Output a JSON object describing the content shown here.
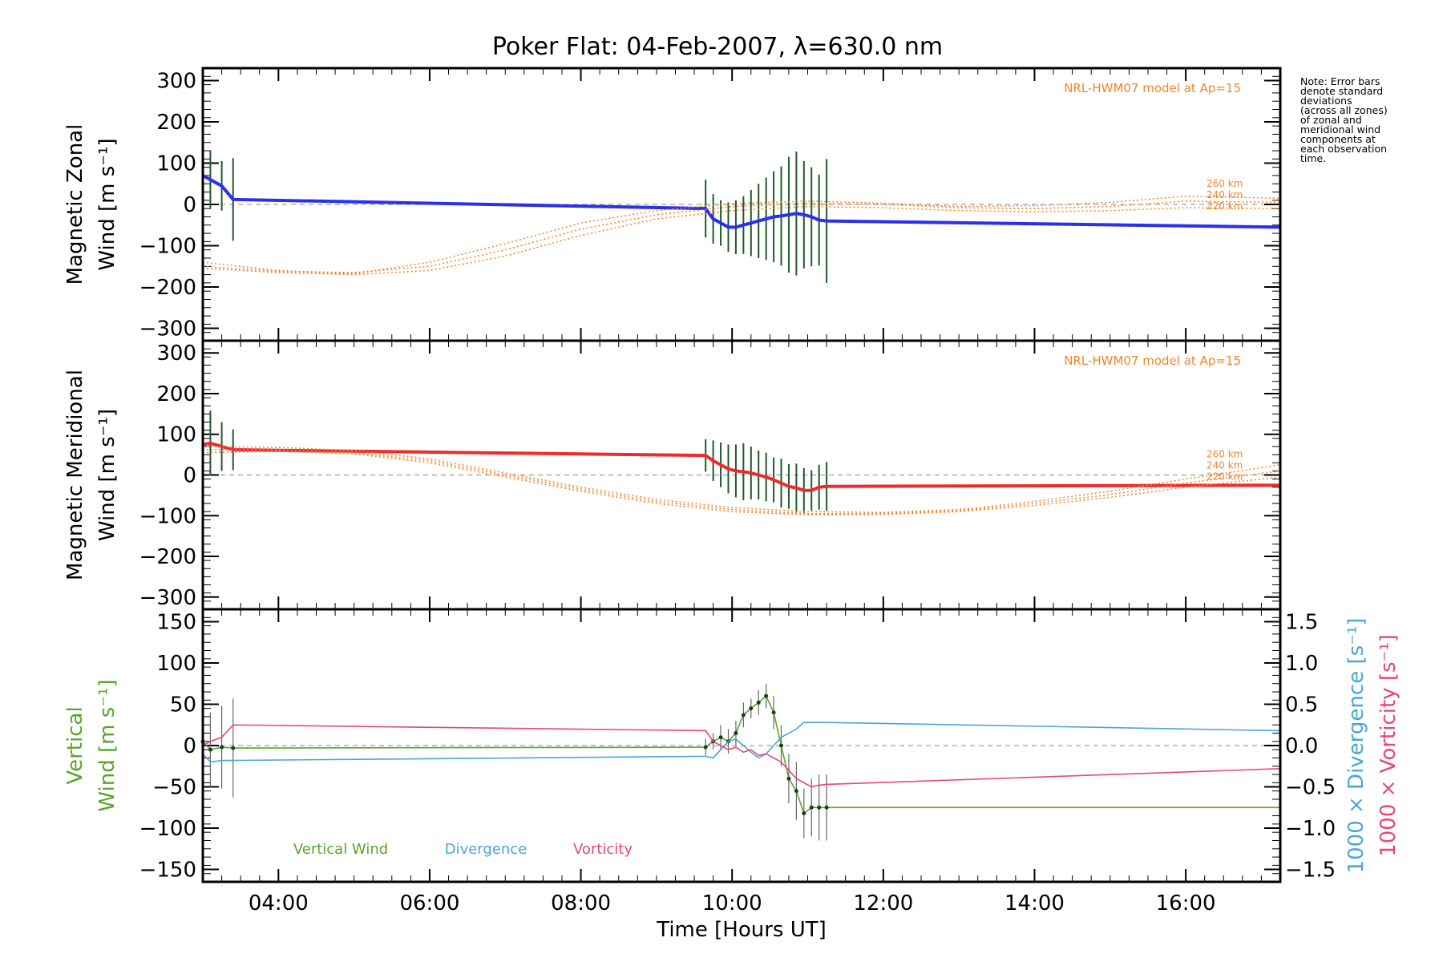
{
  "title": "Poker Flat: 04-Feb-2007, λ=630.0 nm",
  "note_lines": [
    "Note: Error bars",
    "denote standard",
    "deviations",
    "(across all zones)",
    "of zonal and",
    "meridional wind",
    "components at",
    "each observation",
    "time."
  ],
  "colors": {
    "zonal": "#2a2ff0",
    "meridional": "#ee2a2a",
    "model": "#f0862a",
    "vertical": "#5aa52a",
    "divergence": "#4aa6d8",
    "vorticity": "#e8467a",
    "grid_zero": "#888888"
  },
  "xaxis": {
    "label_prefix": "Time ",
    "label_inner": "Hours UT",
    "ticks": [
      "04:00",
      "06:00",
      "08:00",
      "10:00",
      "12:00",
      "14:00",
      "16:00"
    ]
  },
  "chart_data": [
    {
      "type": "line",
      "name": "zonal",
      "ylabel_top": "Magnetic Zonal",
      "ylabel_bottom": "Wind [m s⁻¹]",
      "ylim": [
        -330,
        330
      ],
      "yticks": [
        "300",
        "200",
        "100",
        "0",
        "−100",
        "−200",
        "−300"
      ],
      "model_label": "NRL-HWM07 model at Ap=15",
      "model_alt_labels": [
        "260 km",
        "240 km",
        "220 km"
      ],
      "xlim": [
        3.0,
        17.25
      ],
      "series": [
        {
          "name": "Zonal wind",
          "color": "#2a2ff0",
          "x": [
            3.0,
            3.1,
            3.25,
            3.4,
            9.65,
            9.75,
            9.85,
            9.95,
            10.05,
            10.15,
            10.25,
            10.35,
            10.45,
            10.55,
            10.65,
            10.75,
            10.85,
            10.95,
            11.05,
            11.15,
            11.25,
            17.25
          ],
          "y": [
            70,
            60,
            45,
            12,
            -10,
            -35,
            -45,
            -55,
            -55,
            -50,
            -45,
            -40,
            -35,
            -30,
            -28,
            -25,
            -22,
            -25,
            -30,
            -38,
            -40,
            -55
          ]
        },
        {
          "name": "NRL-HWM07 260 km",
          "color": "#f0862a",
          "style": "dotted",
          "x": [
            3.0,
            4.0,
            5.0,
            6.0,
            7.0,
            8.0,
            9.0,
            10.0,
            11.0,
            12.0,
            13.0,
            14.0,
            15.0,
            16.0,
            17.25
          ],
          "y": [
            -140,
            -160,
            -168,
            -140,
            -95,
            -45,
            -15,
            2,
            8,
            3,
            -5,
            -3,
            5,
            20,
            15
          ]
        },
        {
          "name": "NRL-HWM07 240 km",
          "color": "#f0862a",
          "style": "dotted",
          "x": [
            3.0,
            4.0,
            5.0,
            6.0,
            7.0,
            8.0,
            9.0,
            10.0,
            11.0,
            12.0,
            13.0,
            14.0,
            15.0,
            16.0,
            17.25
          ],
          "y": [
            -150,
            -162,
            -165,
            -150,
            -110,
            -60,
            -25,
            -5,
            3,
            0,
            -8,
            -10,
            -5,
            8,
            5
          ]
        },
        {
          "name": "NRL-HWM07 220 km",
          "color": "#f0862a",
          "style": "dotted",
          "x": [
            3.0,
            4.0,
            5.0,
            6.0,
            7.0,
            8.0,
            9.0,
            10.0,
            11.0,
            12.0,
            13.0,
            14.0,
            15.0,
            16.0,
            17.25
          ],
          "y": [
            -155,
            -165,
            -170,
            -160,
            -125,
            -75,
            -35,
            -15,
            -5,
            -8,
            -15,
            -18,
            -15,
            -8,
            -10
          ]
        }
      ],
      "error_bars": {
        "x": [
          3.0,
          3.1,
          3.25,
          3.4,
          9.65,
          9.75,
          9.85,
          9.95,
          10.05,
          10.15,
          10.25,
          10.35,
          10.45,
          10.55,
          10.65,
          10.75,
          10.85,
          10.95,
          11.05,
          11.15,
          11.25
        ],
        "y": [
          70,
          60,
          45,
          12,
          -10,
          -35,
          -45,
          -55,
          -55,
          -50,
          -45,
          -40,
          -35,
          -30,
          -28,
          -25,
          -22,
          -25,
          -30,
          -38,
          -40
        ],
        "err": [
          80,
          70,
          60,
          100,
          70,
          60,
          55,
          60,
          65,
          70,
          80,
          90,
          100,
          110,
          120,
          140,
          150,
          130,
          120,
          110,
          150
        ]
      }
    },
    {
      "type": "line",
      "name": "meridional",
      "ylabel_top": "Magnetic Meridional",
      "ylabel_bottom": "Wind [m s⁻¹]",
      "ylim": [
        -330,
        330
      ],
      "yticks": [
        "300",
        "200",
        "100",
        "0",
        "−100",
        "−200",
        "−300"
      ],
      "model_label": "NRL-HWM07 model at Ap=15",
      "model_alt_labels": [
        "260 km",
        "240 km",
        "220 km"
      ],
      "xlim": [
        3.0,
        17.25
      ],
      "series": [
        {
          "name": "Meridional wind",
          "color": "#ee2a2a",
          "x": [
            3.0,
            3.1,
            3.25,
            3.4,
            9.65,
            9.75,
            9.85,
            9.95,
            10.05,
            10.15,
            10.25,
            10.35,
            10.45,
            10.55,
            10.65,
            10.75,
            10.85,
            10.95,
            11.05,
            11.15,
            11.25,
            17.25
          ],
          "y": [
            75,
            78,
            70,
            62,
            48,
            35,
            25,
            15,
            10,
            8,
            5,
            0,
            -5,
            -12,
            -20,
            -28,
            -32,
            -38,
            -38,
            -30,
            -28,
            -25
          ]
        },
        {
          "name": "NRL-HWM07 260 km",
          "color": "#f0862a",
          "style": "dotted",
          "x": [
            3.0,
            4.0,
            5.0,
            6.0,
            7.0,
            8.0,
            9.0,
            10.0,
            11.0,
            12.0,
            13.0,
            14.0,
            15.0,
            16.0,
            17.25
          ],
          "y": [
            70,
            68,
            60,
            40,
            5,
            -30,
            -60,
            -80,
            -90,
            -92,
            -85,
            -65,
            -40,
            -10,
            25
          ]
        },
        {
          "name": "NRL-HWM07 240 km",
          "color": "#f0862a",
          "style": "dotted",
          "x": [
            3.0,
            4.0,
            5.0,
            6.0,
            7.0,
            8.0,
            9.0,
            10.0,
            11.0,
            12.0,
            13.0,
            14.0,
            15.0,
            16.0,
            17.25
          ],
          "y": [
            62,
            62,
            55,
            35,
            0,
            -35,
            -65,
            -85,
            -95,
            -95,
            -88,
            -70,
            -48,
            -20,
            10
          ]
        },
        {
          "name": "NRL-HWM07 220 km",
          "color": "#f0862a",
          "style": "dotted",
          "x": [
            3.0,
            4.0,
            5.0,
            6.0,
            7.0,
            8.0,
            9.0,
            10.0,
            11.0,
            12.0,
            13.0,
            14.0,
            15.0,
            16.0,
            17.25
          ],
          "y": [
            55,
            58,
            52,
            30,
            -5,
            -40,
            -70,
            -90,
            -98,
            -97,
            -90,
            -75,
            -55,
            -30,
            -5
          ]
        }
      ],
      "error_bars": {
        "x": [
          3.0,
          3.1,
          3.25,
          3.4,
          9.65,
          9.75,
          9.85,
          9.95,
          10.05,
          10.15,
          10.25,
          10.35,
          10.45,
          10.55,
          10.65,
          10.75,
          10.85,
          10.95,
          11.05,
          11.15,
          11.25
        ],
        "y": [
          75,
          78,
          70,
          62,
          48,
          35,
          25,
          15,
          10,
          8,
          5,
          0,
          -5,
          -12,
          -20,
          -28,
          -32,
          -38,
          -38,
          -30,
          -28
        ],
        "err": [
          70,
          80,
          60,
          50,
          40,
          50,
          55,
          60,
          65,
          70,
          65,
          60,
          60,
          55,
          60,
          55,
          60,
          55,
          50,
          55,
          60
        ]
      }
    },
    {
      "type": "line",
      "name": "vertical",
      "ylabel_top": "Vertical",
      "ylabel_bottom": "Wind [m s⁻¹]",
      "ylim": [
        -165,
        165
      ],
      "yticks": [
        "150",
        "100",
        "50",
        "0",
        "−50",
        "−100",
        "−150"
      ],
      "y2_lim": [
        -1.65,
        1.65
      ],
      "y2_ticks": [
        "1.5",
        "1.0",
        "0.5",
        "0.0",
        "−0.5",
        "−1.0",
        "−1.5"
      ],
      "y2_label_div": "1000 × Divergence [s⁻¹]",
      "y2_label_vort": "1000 × Vorticity [s⁻¹]",
      "legend": [
        "Vertical Wind",
        "Divergence",
        "Vorticity"
      ],
      "xlim": [
        3.0,
        17.25
      ],
      "series": [
        {
          "name": "Vertical Wind",
          "color": "#5aa52a",
          "x": [
            3.0,
            3.1,
            3.25,
            3.4,
            9.65,
            9.75,
            9.85,
            9.95,
            10.05,
            10.15,
            10.25,
            10.35,
            10.45,
            10.55,
            10.65,
            10.75,
            10.85,
            10.95,
            11.05,
            11.15,
            11.25,
            17.25
          ],
          "y": [
            5,
            -5,
            -2,
            -3,
            -2,
            5,
            10,
            5,
            15,
            37,
            45,
            52,
            60,
            40,
            0,
            -40,
            -55,
            -82,
            -75,
            -75,
            -75,
            -75
          ]
        },
        {
          "name": "Divergence",
          "color": "#4aa6d8",
          "axis": "y2",
          "x": [
            3.0,
            3.1,
            3.25,
            3.4,
            9.65,
            9.75,
            9.85,
            9.95,
            10.05,
            10.15,
            10.25,
            10.35,
            10.45,
            10.55,
            10.65,
            10.75,
            10.85,
            10.95,
            11.05,
            11.15,
            11.25,
            17.25
          ],
          "y": [
            -0.1,
            -0.2,
            -0.18,
            -0.18,
            -0.13,
            -0.15,
            -0.05,
            0.05,
            0.08,
            0.0,
            -0.08,
            -0.15,
            -0.1,
            0.0,
            0.1,
            0.15,
            0.2,
            0.28,
            0.28,
            0.28,
            0.28,
            0.18
          ]
        },
        {
          "name": "Vorticity",
          "color": "#e8467a",
          "axis": "y2",
          "x": [
            3.0,
            3.1,
            3.25,
            3.4,
            9.65,
            9.75,
            9.85,
            9.95,
            10.05,
            10.15,
            10.25,
            10.35,
            10.45,
            10.55,
            10.65,
            10.75,
            10.85,
            10.95,
            11.05,
            11.15,
            11.25,
            17.25
          ],
          "y": [
            0.0,
            0.05,
            0.1,
            0.25,
            0.18,
            0.05,
            0.0,
            -0.05,
            -0.02,
            -0.08,
            -0.05,
            -0.12,
            -0.1,
            -0.15,
            -0.2,
            -0.3,
            -0.4,
            -0.45,
            -0.5,
            -0.48,
            -0.47,
            -0.28
          ]
        }
      ],
      "error_bars": {
        "x": [
          3.0,
          3.1,
          3.25,
          3.4,
          9.65,
          9.75,
          9.85,
          9.95,
          10.05,
          10.15,
          10.25,
          10.35,
          10.45,
          10.55,
          10.65,
          10.75,
          10.85,
          10.95,
          11.05,
          11.15,
          11.25
        ],
        "y": [
          5,
          -5,
          -2,
          -3,
          -2,
          5,
          10,
          5,
          15,
          37,
          45,
          52,
          60,
          40,
          0,
          -40,
          -55,
          -82,
          -75,
          -75,
          -75
        ],
        "err": [
          40,
          45,
          50,
          60,
          10,
          10,
          15,
          15,
          15,
          15,
          12,
          15,
          15,
          20,
          25,
          30,
          35,
          30,
          35,
          40,
          40
        ]
      }
    }
  ]
}
